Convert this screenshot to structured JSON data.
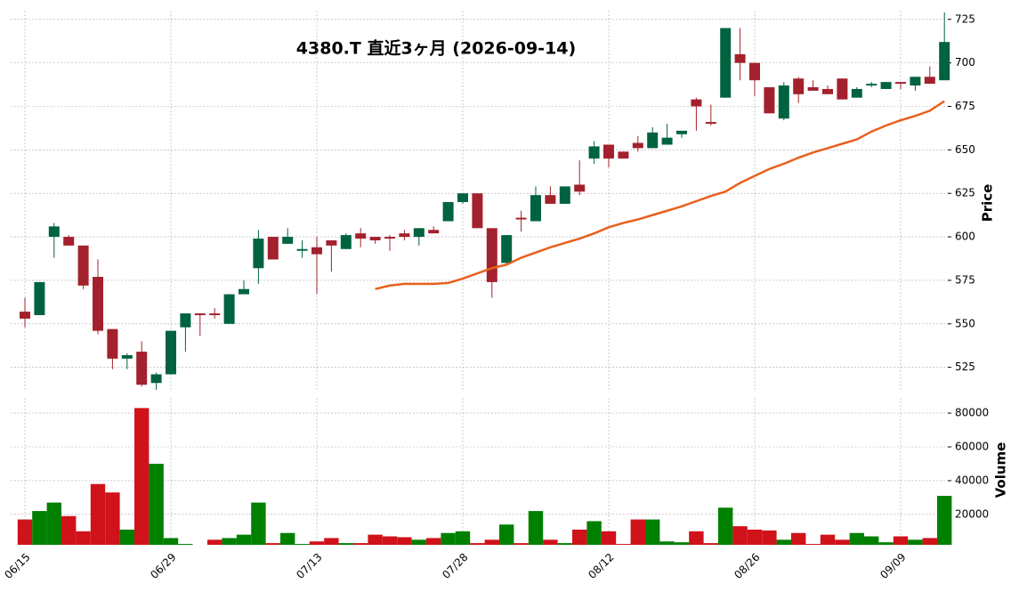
{
  "chart_data": {
    "type": "candlestick",
    "title": "4380.T  直近3ヶ月  (2026-09-14)",
    "ylabel": "Price",
    "categories": [
      "06/15",
      null,
      null,
      null,
      null,
      null,
      null,
      null,
      null,
      null,
      "06/29",
      null,
      null,
      null,
      null,
      null,
      null,
      null,
      null,
      null,
      "07/13",
      null,
      null,
      null,
      null,
      null,
      null,
      null,
      null,
      null,
      "07/28",
      null,
      null,
      null,
      null,
      null,
      null,
      null,
      null,
      null,
      "08/12",
      null,
      null,
      null,
      null,
      null,
      null,
      null,
      null,
      null,
      "08/26",
      null,
      null,
      null,
      null,
      null,
      null,
      null,
      null,
      null,
      "09/09",
      null,
      null,
      null
    ],
    "open": [
      557,
      555,
      600,
      600,
      595,
      577,
      547,
      530,
      534,
      516,
      521,
      548,
      556,
      556,
      550,
      567,
      582,
      600,
      596,
      592,
      594,
      598,
      593,
      602,
      600,
      600,
      602,
      600,
      604,
      609,
      620,
      625,
      605,
      585,
      611,
      609,
      624,
      619,
      630,
      645,
      653,
      649,
      654,
      651,
      653,
      659,
      679,
      666,
      680,
      705,
      700,
      686,
      668,
      691,
      686,
      685,
      691,
      680,
      687,
      685,
      689,
      687,
      692,
      690
    ],
    "high": [
      565,
      574,
      608,
      601,
      595,
      587,
      547,
      533,
      540,
      522,
      546,
      556,
      556,
      559,
      567,
      575,
      604,
      600,
      605,
      598,
      600,
      598,
      602,
      605,
      600,
      601,
      604,
      605,
      606,
      620,
      625,
      625,
      605,
      601,
      615,
      629,
      629,
      629,
      644,
      655,
      653,
      649,
      658,
      663,
      665,
      661,
      680,
      676,
      720,
      720,
      700,
      686,
      689,
      692,
      690,
      687,
      691,
      686,
      689,
      689,
      689,
      692,
      698,
      729
    ],
    "low": [
      548,
      555,
      588,
      595,
      570,
      544,
      524,
      524,
      514,
      512,
      521,
      534,
      543,
      553,
      550,
      567,
      573,
      587,
      596,
      588,
      567,
      580,
      593,
      594,
      596,
      592,
      598,
      595,
      602,
      609,
      619,
      605,
      565,
      584,
      603,
      609,
      619,
      619,
      624,
      642,
      640,
      645,
      649,
      651,
      653,
      657,
      661,
      664,
      680,
      690,
      681,
      671,
      667,
      677,
      684,
      682,
      679,
      680,
      686,
      685,
      685,
      684,
      688,
      690
    ],
    "close": [
      553,
      574,
      606,
      595,
      572,
      546,
      530,
      532,
      515,
      521,
      546,
      556,
      555,
      555,
      567,
      570,
      599,
      587,
      600,
      593,
      590,
      595,
      601,
      599,
      598,
      599,
      600,
      605,
      602,
      620,
      625,
      605,
      574,
      601,
      610,
      624,
      619,
      629,
      626,
      652,
      645,
      645,
      651,
      660,
      657,
      661,
      675,
      665,
      720,
      700,
      690,
      671,
      687,
      682,
      684,
      682,
      679,
      685,
      688,
      689,
      688,
      692,
      688,
      712
    ],
    "up_color": "#006340",
    "down_color": "#a3212c",
    "ylim": [
      511,
      730
    ],
    "yticks": [
      525,
      550,
      575,
      600,
      625,
      650,
      675,
      700,
      725
    ],
    "grid": true,
    "moving_average": {
      "color": "#e8601c",
      "values": [
        null,
        null,
        null,
        null,
        null,
        null,
        null,
        null,
        null,
        null,
        null,
        null,
        null,
        null,
        null,
        null,
        null,
        null,
        null,
        null,
        null,
        null,
        null,
        null,
        570,
        572,
        573,
        573,
        573,
        573.5,
        576,
        579,
        582,
        584,
        588,
        591,
        594,
        596.5,
        599,
        602,
        605.5,
        608,
        610,
        612.5,
        615,
        617.5,
        620.5,
        623.5,
        626,
        631,
        635,
        639,
        642,
        645.5,
        648.5,
        651,
        653.5,
        656,
        660.5,
        664,
        667,
        669.5,
        672.5,
        678
      ]
    },
    "volume": {
      "ylabel": "Volume",
      "up_color": "#008000",
      "down_color": "#d0121b",
      "ylim": [
        2000,
        89000
      ],
      "yticks": [
        20000,
        40000,
        60000,
        80000
      ],
      "values": [
        17000,
        22000,
        27000,
        19000,
        10000,
        38000,
        33000,
        11000,
        83000,
        50000,
        6000,
        2500,
        2000,
        5000,
        6000,
        8000,
        27000,
        3000,
        9000,
        2500,
        4000,
        6000,
        3000,
        3000,
        8000,
        7000,
        6500,
        5000,
        6000,
        9000,
        10000,
        3000,
        5000,
        14000,
        3000,
        22000,
        5000,
        3000,
        11000,
        16000,
        10000,
        2500,
        17000,
        17000,
        4000,
        3500,
        10000,
        3000,
        24000,
        13000,
        11000,
        10500,
        5000,
        9000,
        2500,
        8000,
        5000,
        9000,
        7000,
        3500,
        7000,
        5000,
        6000,
        31000
      ]
    }
  }
}
